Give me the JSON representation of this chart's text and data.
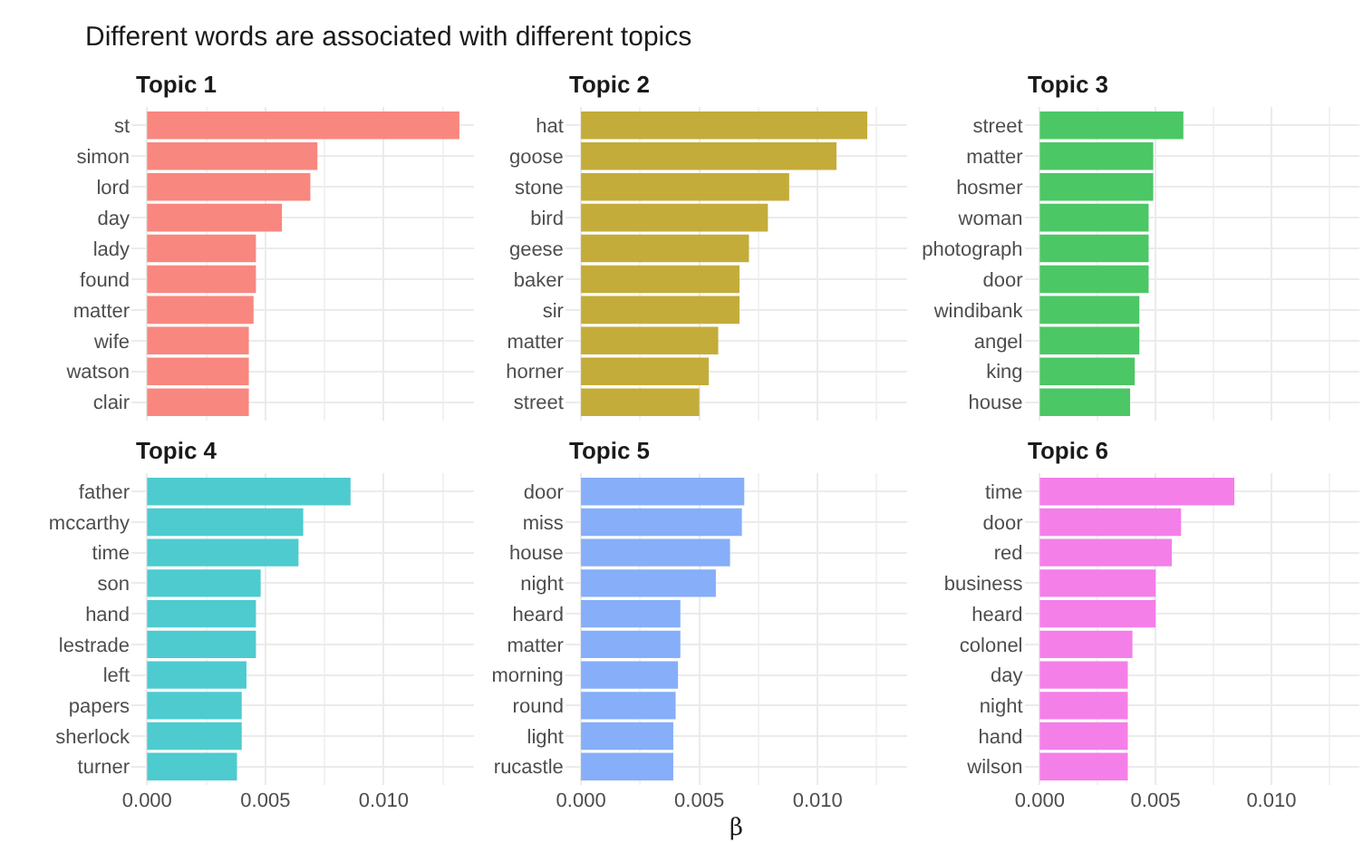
{
  "chart_data": [
    {
      "type": "other",
      "title": "Different words are associated with different topics"
    },
    {
      "type": "bar",
      "orientation": "horizontal",
      "title": "Topic 1",
      "categories": [
        "st",
        "simon",
        "lord",
        "day",
        "lady",
        "found",
        "matter",
        "wife",
        "watson",
        "clair"
      ],
      "values": [
        0.0132,
        0.0072,
        0.0069,
        0.0057,
        0.0046,
        0.0046,
        0.0045,
        0.0043,
        0.0043,
        0.0043
      ],
      "color": "#f8877f",
      "xlim": [
        -0.00066,
        0.0138
      ],
      "xticks": [
        {
          "value": 0,
          "label": null
        },
        {
          "value": 0.005,
          "label": null
        },
        {
          "value": 0.01,
          "label": null
        }
      ],
      "grid": true,
      "tick_labels": "y"
    },
    {
      "type": "bar",
      "orientation": "horizontal",
      "title": "Topic 2",
      "categories": [
        "hat",
        "goose",
        "stone",
        "bird",
        "geese",
        "baker",
        "sir",
        "matter",
        "horner",
        "street"
      ],
      "values": [
        0.0121,
        0.0108,
        0.0088,
        0.0079,
        0.0071,
        0.0067,
        0.0067,
        0.0058,
        0.0054,
        0.005
      ],
      "color": "#c4ac3a",
      "xlim": [
        -0.00066,
        0.0138
      ],
      "xticks": [
        {
          "value": 0,
          "label": null
        },
        {
          "value": 0.005,
          "label": null
        },
        {
          "value": 0.01,
          "label": null
        }
      ],
      "grid": true,
      "tick_labels": "y"
    },
    {
      "type": "bar",
      "orientation": "horizontal",
      "title": "Topic 3",
      "categories": [
        "street",
        "matter",
        "hosmer",
        "woman",
        "photograph",
        "door",
        "windibank",
        "angel",
        "king",
        "house"
      ],
      "values": [
        0.0062,
        0.0049,
        0.0049,
        0.0047,
        0.0047,
        0.0047,
        0.0043,
        0.0043,
        0.0041,
        0.0039
      ],
      "color": "#4cc765",
      "xlim": [
        -0.00066,
        0.0138
      ],
      "xticks": [
        {
          "value": 0,
          "label": null
        },
        {
          "value": 0.005,
          "label": null
        },
        {
          "value": 0.01,
          "label": null
        }
      ],
      "grid": true,
      "tick_labels": "y"
    },
    {
      "type": "bar",
      "orientation": "horizontal",
      "title": "Topic 4",
      "categories": [
        "father",
        "mccarthy",
        "time",
        "son",
        "hand",
        "lestrade",
        "left",
        "papers",
        "sherlock",
        "turner"
      ],
      "values": [
        0.0086,
        0.0066,
        0.0064,
        0.0048,
        0.0046,
        0.0046,
        0.0042,
        0.004,
        0.004,
        0.0038
      ],
      "color": "#4dcbcf",
      "xlim": [
        -0.00066,
        0.0138
      ],
      "xticks": [
        {
          "value": 0,
          "label": "0.000"
        },
        {
          "value": 0.005,
          "label": "0.005"
        },
        {
          "value": 0.01,
          "label": "0.010"
        }
      ],
      "grid": true
    },
    {
      "type": "bar",
      "orientation": "horizontal",
      "title": "Topic 5",
      "xlabel": "β",
      "categories": [
        "door",
        "miss",
        "house",
        "night",
        "heard",
        "matter",
        "morning",
        "round",
        "light",
        "rucastle"
      ],
      "values": [
        0.0069,
        0.0068,
        0.0063,
        0.0057,
        0.0042,
        0.0042,
        0.0041,
        0.004,
        0.0039,
        0.0039
      ],
      "color": "#86aef9",
      "xlim": [
        -0.00066,
        0.0138
      ],
      "xticks": [
        {
          "value": 0,
          "label": "0.000"
        },
        {
          "value": 0.005,
          "label": "0.005"
        },
        {
          "value": 0.01,
          "label": "0.010"
        }
      ],
      "grid": true
    },
    {
      "type": "bar",
      "orientation": "horizontal",
      "title": "Topic 6",
      "categories": [
        "time",
        "door",
        "red",
        "business",
        "heard",
        "colonel",
        "day",
        "night",
        "hand",
        "wilson"
      ],
      "values": [
        0.0084,
        0.0061,
        0.0057,
        0.005,
        0.005,
        0.004,
        0.0038,
        0.0038,
        0.0038,
        0.0038
      ],
      "color": "#f47fe8",
      "xlim": [
        -0.00066,
        0.0138
      ],
      "xticks": [
        {
          "value": 0,
          "label": "0.000"
        },
        {
          "value": 0.005,
          "label": "0.005"
        },
        {
          "value": 0.01,
          "label": "0.010"
        }
      ],
      "grid": true
    }
  ]
}
